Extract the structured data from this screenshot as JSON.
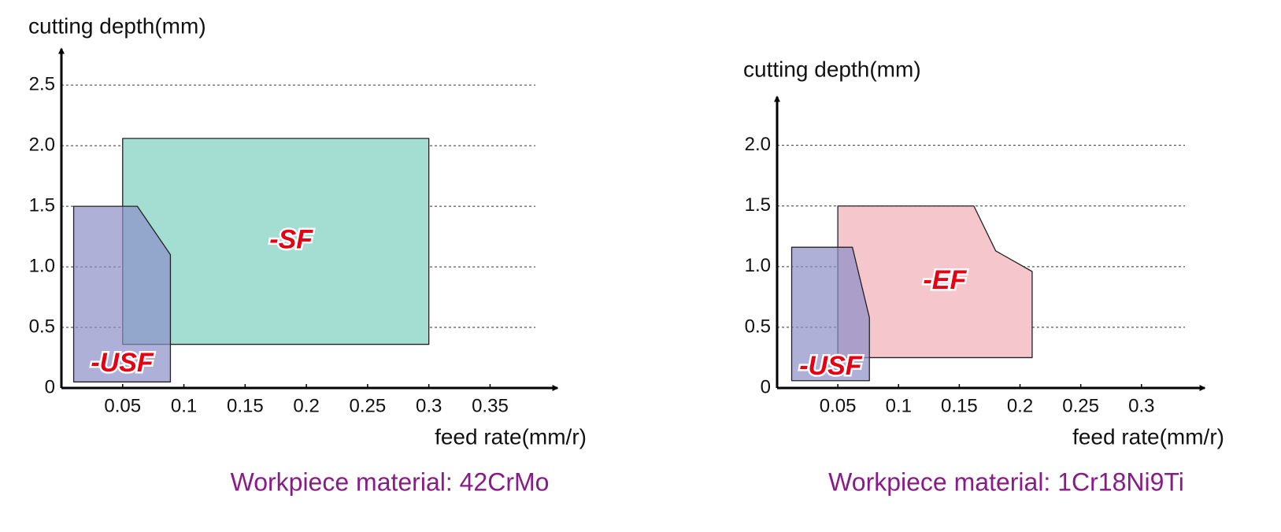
{
  "chart_data": [
    {
      "type": "region",
      "ylabel": "cutting depth(mm)",
      "xlabel": "feed rate(mm/r)",
      "subtitle": "Workpiece material: 42CrMo",
      "xlim": [
        0,
        0.405
      ],
      "ylim": [
        0,
        2.8
      ],
      "xticks": [
        0.05,
        0.1,
        0.15,
        0.2,
        0.25,
        0.3,
        0.35
      ],
      "yticks": [
        0,
        0.5,
        {
          "value": 1,
          "label": "1.0"
        },
        1.5,
        {
          "value": 2,
          "label": "2.0"
        },
        2.5
      ],
      "grid": true,
      "series": [
        {
          "name": "-SF",
          "color": "#a4ddd2",
          "x": [
            0.05,
            0.05,
            0.3,
            0.3
          ],
          "y": [
            0.36,
            2.06,
            2.06,
            0.36
          ]
        },
        {
          "name": "-USF",
          "color": "#8c8fc8",
          "x": [
            0.01,
            0.01,
            0.062,
            0.089,
            0.089
          ],
          "y": [
            0.05,
            1.5,
            1.5,
            1.1,
            0.05
          ]
        }
      ]
    },
    {
      "type": "region",
      "ylabel": "cutting depth(mm)",
      "xlabel": "feed rate(mm/r)",
      "subtitle": "Workpiece material: 1Cr18Ni9Ti",
      "xlim": [
        0,
        0.352
      ],
      "ylim": [
        0,
        2.4
      ],
      "xticks": [
        0.05,
        0.1,
        0.15,
        0.2,
        0.25,
        0.3
      ],
      "yticks": [
        0,
        0.5,
        {
          "value": 1,
          "label": "1.0"
        },
        1.5,
        {
          "value": 2,
          "label": "2.0"
        }
      ],
      "grid": true,
      "series": [
        {
          "name": "-EF",
          "color": "#f5c6cc",
          "x": [
            0.05,
            0.05,
            0.162,
            0.18,
            0.21,
            0.21
          ],
          "y": [
            0.25,
            1.5,
            1.5,
            1.13,
            0.96,
            0.25
          ]
        },
        {
          "name": "-USF",
          "color": "#8c8fc8",
          "x": [
            0.012,
            0.012,
            0.062,
            0.076,
            0.076
          ],
          "y": [
            0.06,
            1.16,
            1.16,
            0.58,
            0.06
          ]
        }
      ]
    }
  ]
}
